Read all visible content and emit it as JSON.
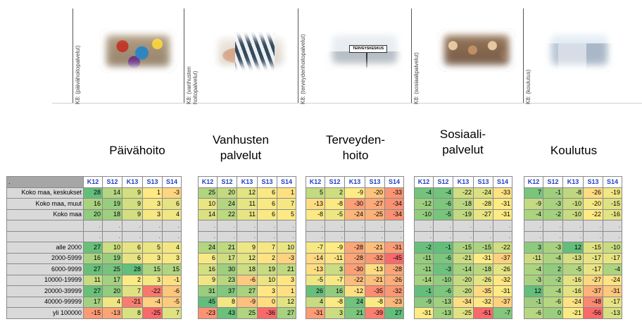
{
  "header_labels": [
    "K8: (päivähoitopalvelut)",
    "K8: (vanhusten hoitopalvelut)",
    "K8: (terveydenhoitopalvelut)",
    "K8: (sosiaalipalvelut)",
    "K8: (koulutus)"
  ],
  "sign_text": "TERVEYSKESKUS",
  "titles": [
    "Päivähoito",
    "Vanhusten palvelut",
    "Terveyden- hoito",
    "Sosiaali- palvelut",
    "Koulutus"
  ],
  "column_headers": [
    "K12",
    "S12",
    "K13",
    "S13",
    "S14"
  ],
  "corner_text": ".",
  "blank_mark": ".",
  "row_labels": [
    "Koko maa, keskukset",
    "Koko maa, muut",
    "Koko maa",
    "",
    "",
    "alle 2000",
    "2000-5999",
    "6000-9999",
    "10000-19999",
    "20000-39999",
    "40000-99999",
    "yli 100000"
  ],
  "tables": [
    {
      "name": "paivahoito",
      "rows": [
        [
          28,
          14,
          9,
          1,
          -3
        ],
        [
          16,
          19,
          9,
          3,
          6
        ],
        [
          20,
          18,
          9,
          3,
          4
        ],
        null,
        null,
        [
          27,
          10,
          6,
          5,
          4
        ],
        [
          16,
          19,
          6,
          3,
          3
        ],
        [
          27,
          25,
          28,
          15,
          15
        ],
        [
          11,
          17,
          2,
          3,
          -1
        ],
        [
          27,
          20,
          7,
          -22,
          -6
        ],
        [
          17,
          4,
          -21,
          -4,
          -5
        ],
        [
          -15,
          -13,
          8,
          -25,
          7
        ]
      ]
    },
    {
      "name": "vanhusten",
      "rows": [
        [
          25,
          20,
          12,
          6,
          1
        ],
        [
          10,
          24,
          11,
          6,
          7
        ],
        [
          14,
          22,
          11,
          6,
          5
        ],
        null,
        null,
        [
          24,
          21,
          9,
          7,
          10
        ],
        [
          6,
          17,
          12,
          2,
          -3
        ],
        [
          16,
          30,
          18,
          19,
          21
        ],
        [
          9,
          23,
          -6,
          10,
          3
        ],
        [
          31,
          37,
          27,
          3,
          1
        ],
        [
          45,
          8,
          -9,
          0,
          12
        ],
        [
          -23,
          43,
          25,
          -36,
          27
        ]
      ]
    },
    {
      "name": "terveydenhoito",
      "rows": [
        [
          5,
          2,
          -9,
          -20,
          -33
        ],
        [
          -13,
          -8,
          -30,
          -27,
          -34
        ],
        [
          -8,
          -5,
          -24,
          -25,
          -34
        ],
        null,
        null,
        [
          -7,
          -9,
          -28,
          -21,
          -31
        ],
        [
          -14,
          -11,
          -28,
          -32,
          -45
        ],
        [
          -13,
          3,
          -30,
          -13,
          -28
        ],
        [
          -5,
          -7,
          -22,
          -21,
          -26
        ],
        [
          26,
          16,
          -12,
          -35,
          -32
        ],
        [
          4,
          -8,
          24,
          -8,
          -23
        ],
        [
          -31,
          3,
          21,
          -39,
          27
        ]
      ]
    },
    {
      "name": "sosiaali",
      "rows": [
        [
          -4,
          -4,
          -22,
          -24,
          -33
        ],
        [
          -12,
          -6,
          -18,
          -28,
          -31
        ],
        [
          -10,
          -5,
          -19,
          -27,
          -31
        ],
        null,
        null,
        [
          -2,
          -1,
          -15,
          -15,
          -22
        ],
        [
          -11,
          -6,
          -21,
          -31,
          -37
        ],
        [
          -11,
          -3,
          -14,
          -18,
          -26
        ],
        [
          -14,
          -10,
          -20,
          -26,
          -32
        ],
        [
          -1,
          -6,
          -20,
          -35,
          -31
        ],
        [
          -9,
          -13,
          -34,
          -32,
          -37
        ],
        [
          -31,
          -13,
          -25,
          -61,
          -7
        ]
      ]
    },
    {
      "name": "koulutus",
      "rows": [
        [
          7,
          -1,
          -8,
          -26,
          -19
        ],
        [
          -9,
          -3,
          -10,
          -20,
          -15
        ],
        [
          -4,
          -2,
          -10,
          -22,
          -16
        ],
        null,
        null,
        [
          3,
          -3,
          12,
          -15,
          -10
        ],
        [
          -11,
          -4,
          -13,
          -17,
          -17
        ],
        [
          -4,
          2,
          -5,
          -17,
          -4
        ],
        [
          -3,
          -2,
          -16,
          -27,
          -24
        ],
        [
          12,
          -4,
          -16,
          -37,
          -31
        ],
        [
          -1,
          -6,
          -24,
          -48,
          -17
        ],
        [
          -6,
          0,
          -21,
          -56,
          -13
        ]
      ]
    }
  ],
  "colors": {
    "green": "#63be7b",
    "yellow": "#ffeb84",
    "red": "#f8696b",
    "header_text": "#1f3fbf"
  }
}
